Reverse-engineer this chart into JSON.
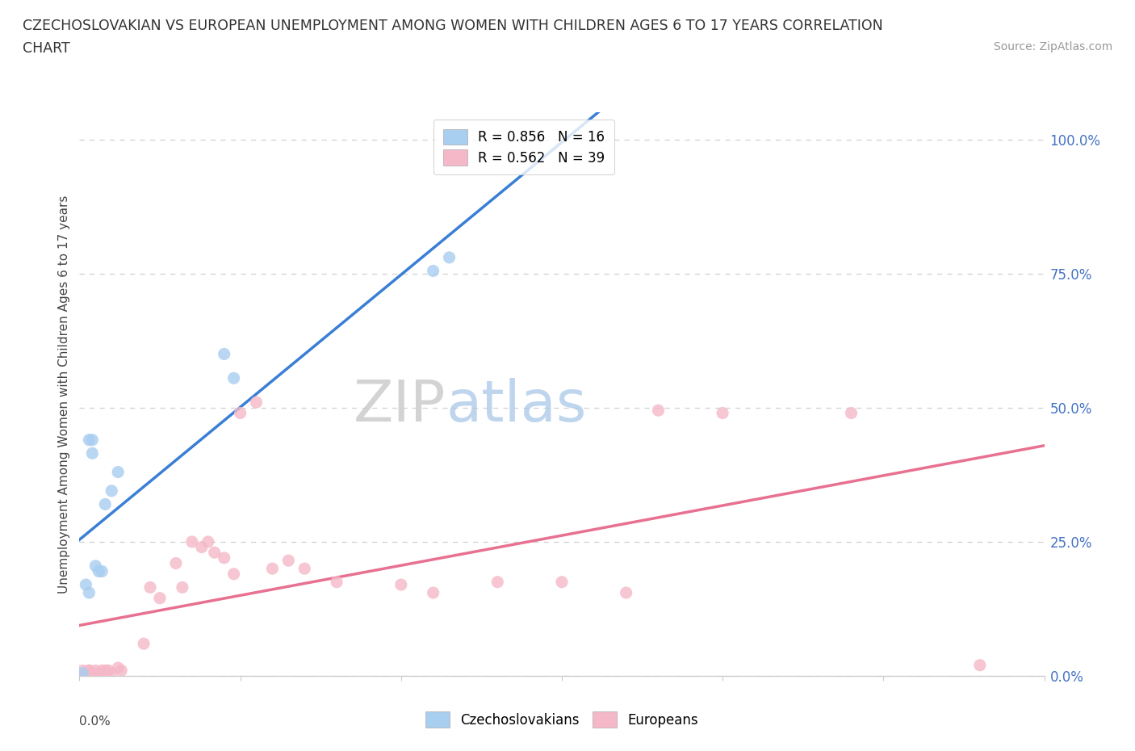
{
  "title_line1": "CZECHOSLOVAKIAN VS EUROPEAN UNEMPLOYMENT AMONG WOMEN WITH CHILDREN AGES 6 TO 17 YEARS CORRELATION",
  "title_line2": "CHART",
  "source": "Source: ZipAtlas.com",
  "ylabel": "Unemployment Among Women with Children Ages 6 to 17 years",
  "right_yticks": [
    "0.0%",
    "25.0%",
    "50.0%",
    "75.0%",
    "100.0%"
  ],
  "right_ytick_vals": [
    0.0,
    0.25,
    0.5,
    0.75,
    1.0
  ],
  "color_czech": "#a8cef0",
  "color_europe": "#f5b8c8",
  "color_trendline_czech": "#3a7fd5",
  "color_trendline_europe": "#e87090",
  "legend_czech_R": "R = 0.856",
  "legend_czech_N": "N = 16",
  "legend_europe_R": "R = 0.562",
  "legend_europe_N": "N = 39",
  "watermark_zip": "ZIP",
  "watermark_atlas": "atlas",
  "czech_x": [
    0.001,
    0.002,
    0.003,
    0.003,
    0.004,
    0.004,
    0.005,
    0.006,
    0.007,
    0.008,
    0.01,
    0.012,
    0.045,
    0.048,
    0.11,
    0.115
  ],
  "czech_y": [
    0.005,
    0.17,
    0.155,
    0.44,
    0.415,
    0.44,
    0.205,
    0.195,
    0.195,
    0.32,
    0.345,
    0.38,
    0.6,
    0.555,
    0.755,
    0.78
  ],
  "europe_x": [
    0.001,
    0.002,
    0.003,
    0.003,
    0.004,
    0.005,
    0.006,
    0.007,
    0.008,
    0.009,
    0.01,
    0.012,
    0.013,
    0.02,
    0.022,
    0.025,
    0.03,
    0.032,
    0.035,
    0.038,
    0.04,
    0.042,
    0.045,
    0.048,
    0.05,
    0.055,
    0.06,
    0.065,
    0.07,
    0.08,
    0.1,
    0.11,
    0.13,
    0.15,
    0.17,
    0.18,
    0.2,
    0.24,
    0.28
  ],
  "europe_y": [
    0.01,
    0.005,
    0.01,
    0.01,
    0.005,
    0.01,
    0.005,
    0.01,
    0.01,
    0.01,
    0.005,
    0.015,
    0.01,
    0.06,
    0.165,
    0.145,
    0.21,
    0.165,
    0.25,
    0.24,
    0.25,
    0.23,
    0.22,
    0.19,
    0.49,
    0.51,
    0.2,
    0.215,
    0.2,
    0.175,
    0.17,
    0.155,
    0.175,
    0.175,
    0.155,
    0.495,
    0.49,
    0.49,
    0.02
  ],
  "xmin": 0.0,
  "xmax": 0.3,
  "ymin": 0.0,
  "ymax": 1.05,
  "grid_color": "#d0d0d0",
  "spine_color": "#cccccc"
}
